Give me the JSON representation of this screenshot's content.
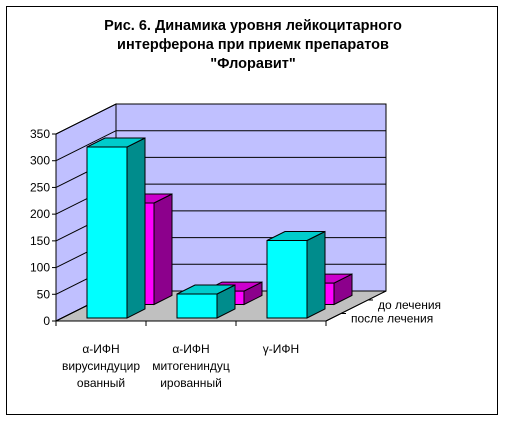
{
  "chart_data": {
    "type": "bar",
    "title_lines": [
      "Рис. 6. Динамика уровня лейкоцитарного",
      "интерферона при приемк препаратов",
      "\"Флоравит\""
    ],
    "categories": [
      [
        "α-ИФН",
        "вирусиндуцир",
        "ованный"
      ],
      [
        "α-ИФН",
        "митогениндуц",
        "ированный"
      ],
      [
        "γ-ИФН"
      ]
    ],
    "series": [
      {
        "name": "до лечения",
        "values": [
          190,
          25,
          40
        ],
        "color": "#ff00ff"
      },
      {
        "name": "после лечения",
        "values": [
          320,
          45,
          145
        ],
        "color": "#00ffff"
      }
    ],
    "y_ticks": [
      "0",
      "50",
      "100",
      "150",
      "200",
      "250",
      "300",
      "350"
    ],
    "ylim": [
      0,
      350
    ],
    "grid": true,
    "wall_color": "#c0c0ff",
    "floor_color": "#c0c0c0"
  }
}
